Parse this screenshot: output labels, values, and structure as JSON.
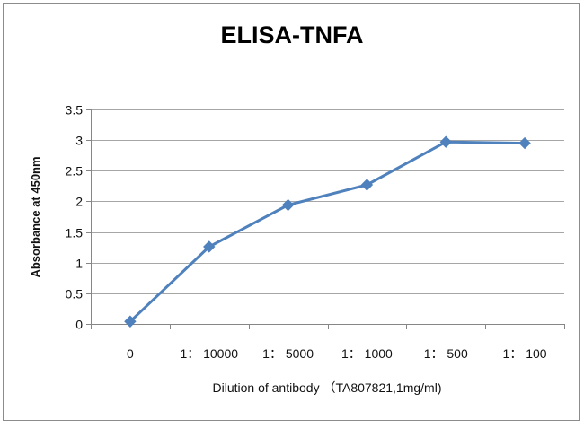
{
  "chart_data": {
    "type": "line",
    "title": "ELISA-TNFA",
    "xlabel": "Dilution of antibody （TA807821,1mg/ml)",
    "ylabel": "Absorbance at 450nm",
    "categories": [
      "0",
      "1： 10000",
      "1： 5000",
      "1： 1000",
      "1： 500",
      "1： 100"
    ],
    "series": [
      {
        "values": [
          0.04,
          1.26,
          1.94,
          2.27,
          2.97,
          2.95
        ]
      }
    ],
    "ylim": [
      0,
      3.5
    ],
    "yticks": [
      "0",
      "0.5",
      "1",
      "1.5",
      "2",
      "2.5",
      "3",
      "3.5"
    ],
    "grid": true,
    "legend": "none",
    "colors": {
      "line": "#4f81bd",
      "grid": "#a6a6a6",
      "axis": "#868686"
    }
  }
}
